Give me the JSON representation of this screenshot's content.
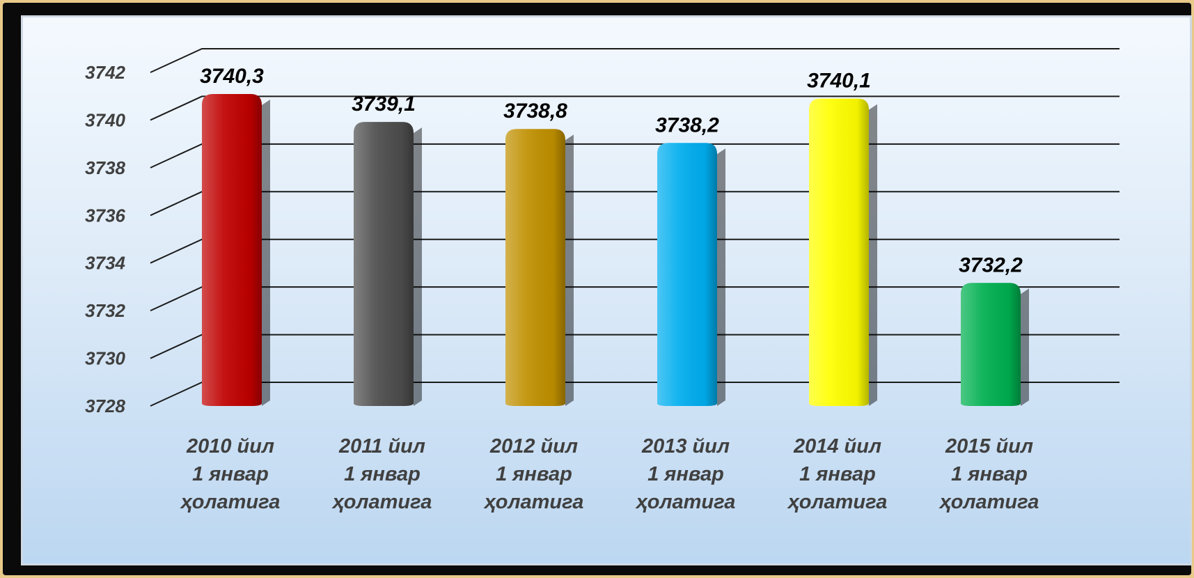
{
  "chart_data": {
    "type": "bar",
    "title": "",
    "xlabel": "",
    "ylabel": "",
    "ylim": [
      3728,
      3742
    ],
    "yticks": [
      3728,
      3730,
      3732,
      3734,
      3736,
      3738,
      3740,
      3742
    ],
    "grid": true,
    "legend": "none",
    "categories": [
      [
        "2010 йил",
        "1 январ",
        "ҳолатига"
      ],
      [
        "2011 йил",
        "1 январ",
        "ҳолатига"
      ],
      [
        "2012 йил",
        "1 январ",
        "ҳолатига"
      ],
      [
        "2013 йил",
        "1 январ",
        "ҳолатига"
      ],
      [
        "2014 йил",
        "1 январ",
        "ҳолатига"
      ],
      [
        "2015 йил",
        "1 январ",
        "ҳолатига"
      ]
    ],
    "values": [
      3740.3,
      3739.1,
      3738.8,
      3738.2,
      3740.1,
      3732.2
    ],
    "value_labels": [
      "3740,3",
      "3739,1",
      "3738,8",
      "3738,2",
      "3740,1",
      "3732,2"
    ],
    "colors": [
      "#c00000",
      "#4d4d4d",
      "#c09000",
      "#00aeef",
      "#ffff00",
      "#00b050"
    ]
  }
}
